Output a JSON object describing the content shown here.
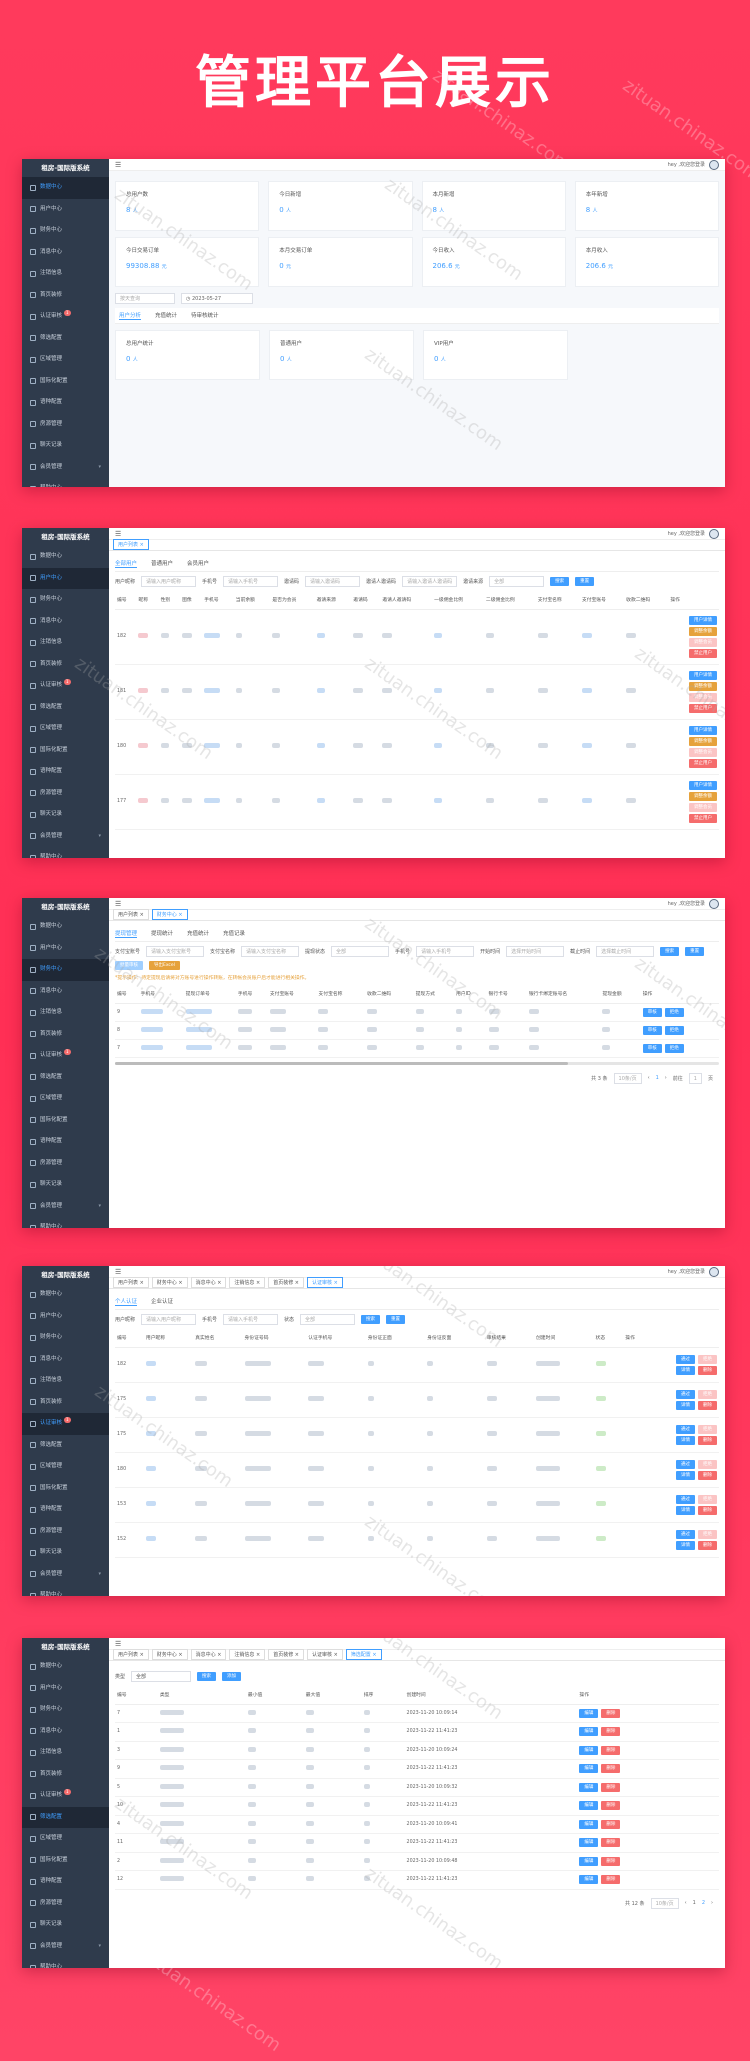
{
  "page_title": "管理平台展示",
  "brand": "租房-国际版系统",
  "user_label": "hey ,欢迎您登录",
  "watermark_text": "zituan.chinaz.com",
  "sidebar": {
    "items": [
      {
        "label": "数据中心"
      },
      {
        "label": "用户中心"
      },
      {
        "label": "财务中心"
      },
      {
        "label": "消息中心"
      },
      {
        "label": "注销信息"
      },
      {
        "label": "首页装修"
      },
      {
        "label": "认证审核",
        "badge": "1"
      },
      {
        "label": "筛选配置"
      },
      {
        "label": "区域管理"
      },
      {
        "label": "国际化配置"
      },
      {
        "label": "语种配置"
      },
      {
        "label": "房源管理"
      },
      {
        "label": "聊天记录"
      },
      {
        "label": "会员管理"
      },
      {
        "label": "帮助中心"
      }
    ]
  },
  "tabs": {
    "user_list": "用户列表",
    "finance": "财务中心",
    "message": "消息中心",
    "cancel": "注销信息",
    "home": "首页装修",
    "auth": "认证审核",
    "filter": "筛选配置"
  },
  "panel1": {
    "stats_row1": [
      {
        "label": "总用户数",
        "value": "8",
        "unit": "人"
      },
      {
        "label": "今日新增",
        "value": "0",
        "unit": "人"
      },
      {
        "label": "本月新增",
        "value": "8",
        "unit": "人"
      },
      {
        "label": "本年新增",
        "value": "8",
        "unit": "人"
      }
    ],
    "stats_row2": [
      {
        "label": "今日交易订单",
        "value": "99308.88",
        "unit": "元"
      },
      {
        "label": "本月交易订单",
        "value": "0",
        "unit": "元"
      },
      {
        "label": "今日收入",
        "value": "206.6",
        "unit": "元"
      },
      {
        "label": "本月收入",
        "value": "206.6",
        "unit": "元"
      }
    ],
    "select_placeholder": "按天查询",
    "date_value": "2023-05-27",
    "subtabs": [
      "用户分析",
      "充值统计",
      "待审核统计"
    ],
    "stats_row3": [
      {
        "label": "总用户统计",
        "value": "0",
        "unit": "人"
      },
      {
        "label": "普通用户",
        "value": "0",
        "unit": "人"
      },
      {
        "label": "VIP用户",
        "value": "0",
        "unit": "人"
      }
    ]
  },
  "panel2": {
    "subtabs": [
      "全部用户",
      "普通用户",
      "会员用户"
    ],
    "filters": [
      {
        "label": "用户昵称",
        "placeholder": "请输入用户昵称"
      },
      {
        "label": "手机号",
        "placeholder": "请输入手机号"
      },
      {
        "label": "邀请码",
        "placeholder": "请输入邀请码"
      },
      {
        "label": "邀请人邀请码",
        "placeholder": "请输入邀请人邀请码"
      },
      {
        "label": "邀请来源",
        "placeholder": "全部"
      }
    ],
    "search_btn": "搜索",
    "reset_btn": "重置",
    "columns": [
      "编号",
      "昵称",
      "性别",
      "图像",
      "手机号",
      "当前余额",
      "是否为会员",
      "邀请来源",
      "邀请码",
      "邀请人邀请码",
      "一级佣金比例",
      "二级佣金比例",
      "支付宝名称",
      "支付宝账号",
      "收款二维码",
      "操作"
    ],
    "rows": [
      {
        "id": "182"
      },
      {
        "id": "181"
      },
      {
        "id": "180"
      },
      {
        "id": "177"
      }
    ],
    "op_buttons": [
      "用户详情",
      "调整余额",
      "调整会员",
      "禁止用户"
    ]
  },
  "panel3": {
    "subtabs": [
      "提现管理",
      "提现统计",
      "充值统计",
      "充值记录"
    ],
    "filters": [
      {
        "label": "支付宝账号",
        "placeholder": "请输入支付宝账号"
      },
      {
        "label": "支付宝名称",
        "placeholder": "请输入支付宝名称"
      },
      {
        "label": "提现状态",
        "placeholder": "全部"
      },
      {
        "label": "手机号",
        "placeholder": "请输入手机号"
      },
      {
        "label": "开始时间",
        "placeholder": "选择开始时间"
      },
      {
        "label": "截止时间",
        "placeholder": "选择截止时间"
      }
    ],
    "buttons": [
      "搜索",
      "重置",
      "批量审核",
      "导出Excel"
    ],
    "notice": "*提示操作：待定提现后请将对方账号进行操作转账，在转帐会员账户后才能进行相关操作。",
    "columns": [
      "编号",
      "手机号",
      "提现订单号",
      "手机号",
      "支付宝账号",
      "支付宝名称",
      "收款二维码",
      "提现方式",
      "用户ID",
      "银行卡号",
      "银行卡绑定账号名",
      "提现金额",
      "操作"
    ],
    "rows": [
      {
        "id": "9"
      },
      {
        "id": "8"
      },
      {
        "id": "7"
      }
    ],
    "op_buttons": [
      "审核",
      "拒绝"
    ],
    "total": "共 3 条",
    "page_size": "10条/页",
    "page": "1",
    "goto": "前往",
    "goto_page": "1",
    "goto_suffix": "页"
  },
  "panel4": {
    "subtabs": [
      "个人认证",
      "企业认证"
    ],
    "filters": [
      {
        "label": "用户昵称",
        "placeholder": "请输入用户昵称"
      },
      {
        "label": "手机号",
        "placeholder": "请输入手机号"
      },
      {
        "label": "状态",
        "placeholder": "全部"
      }
    ],
    "columns": [
      "编号",
      "用户昵称",
      "真实姓名",
      "身份证号码",
      "认证手机号",
      "身份证正面",
      "身份证反面",
      "审核结果",
      "创建时间",
      "状态",
      "操作"
    ],
    "rows": [
      {
        "id": "182"
      },
      {
        "id": "175"
      },
      {
        "id": "175"
      },
      {
        "id": "180"
      },
      {
        "id": "153"
      },
      {
        "id": "152"
      }
    ],
    "op_buttons": [
      "通过",
      "拒绝",
      "详情",
      "删除"
    ]
  },
  "panel5": {
    "type_label": "类型",
    "type_value": "全部",
    "buttons": [
      "搜索",
      "添加"
    ],
    "columns": [
      "编号",
      "类型",
      "最小值",
      "最大值",
      "排序",
      "创建时间",
      "操作"
    ],
    "rows": [
      {
        "id": "7",
        "time": "2023-11-20 10:09:14"
      },
      {
        "id": "1",
        "time": "2023-11-22 11:41:23"
      },
      {
        "id": "3",
        "time": "2023-11-20 10:09:24"
      },
      {
        "id": "9",
        "time": "2023-11-22 11:41:23"
      },
      {
        "id": "5",
        "time": "2023-11-20 10:09:32"
      },
      {
        "id": "10",
        "time": "2023-11-22 11:41:23"
      },
      {
        "id": "4",
        "time": "2023-11-20 10:09:41"
      },
      {
        "id": "11",
        "time": "2023-11-22 11:41:23"
      },
      {
        "id": "2",
        "time": "2023-11-20 10:09:48"
      },
      {
        "id": "12",
        "time": "2023-11-22 11:41:23"
      }
    ],
    "op_buttons": [
      "编辑",
      "删除"
    ],
    "total": "共 12 条",
    "page_size": "10条/页",
    "pages": [
      "1",
      "2"
    ]
  }
}
